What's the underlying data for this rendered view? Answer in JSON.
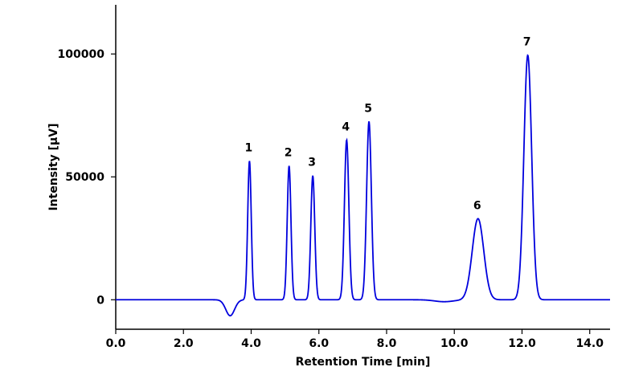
{
  "chart_data": {
    "type": "line",
    "title": "",
    "xlabel": "Retention Time [min]",
    "ylabel": "Intensity [µV]",
    "xlim": [
      0,
      14.6
    ],
    "ylim": [
      -12000,
      120000
    ],
    "x_ticks": [
      {
        "value": 0,
        "label": "0.0"
      },
      {
        "value": 2,
        "label": "2.0"
      },
      {
        "value": 4,
        "label": "4.0"
      },
      {
        "value": 6,
        "label": "6.0"
      },
      {
        "value": 8,
        "label": "8.0"
      },
      {
        "value": 10,
        "label": "10.0"
      },
      {
        "value": 12,
        "label": "12.0"
      },
      {
        "value": 14,
        "label": "14.0"
      }
    ],
    "y_ticks": [
      {
        "value": 0,
        "label": "0"
      },
      {
        "value": 50000,
        "label": "50000"
      },
      {
        "value": 100000,
        "label": "100000"
      }
    ],
    "grid": false,
    "line_color": "#0000dd",
    "dips": [
      {
        "rt": 3.38,
        "height": -6500,
        "sigma": 0.13
      },
      {
        "rt": 9.7,
        "height": -800,
        "sigma": 0.28
      }
    ],
    "series": [
      {
        "peaks": [
          {
            "label": "1",
            "rt": 3.95,
            "height": 56500,
            "sigma": 0.052
          },
          {
            "label": "2",
            "rt": 5.12,
            "height": 54500,
            "sigma": 0.055
          },
          {
            "label": "3",
            "rt": 5.82,
            "height": 50500,
            "sigma": 0.058
          },
          {
            "label": "4",
            "rt": 6.82,
            "height": 65000,
            "sigma": 0.065
          },
          {
            "label": "5",
            "rt": 7.48,
            "height": 72500,
            "sigma": 0.07
          },
          {
            "label": "6",
            "rt": 10.7,
            "height": 33000,
            "sigma": 0.17
          },
          {
            "label": "7",
            "rt": 12.17,
            "height": 99500,
            "sigma": 0.115
          }
        ]
      }
    ]
  }
}
